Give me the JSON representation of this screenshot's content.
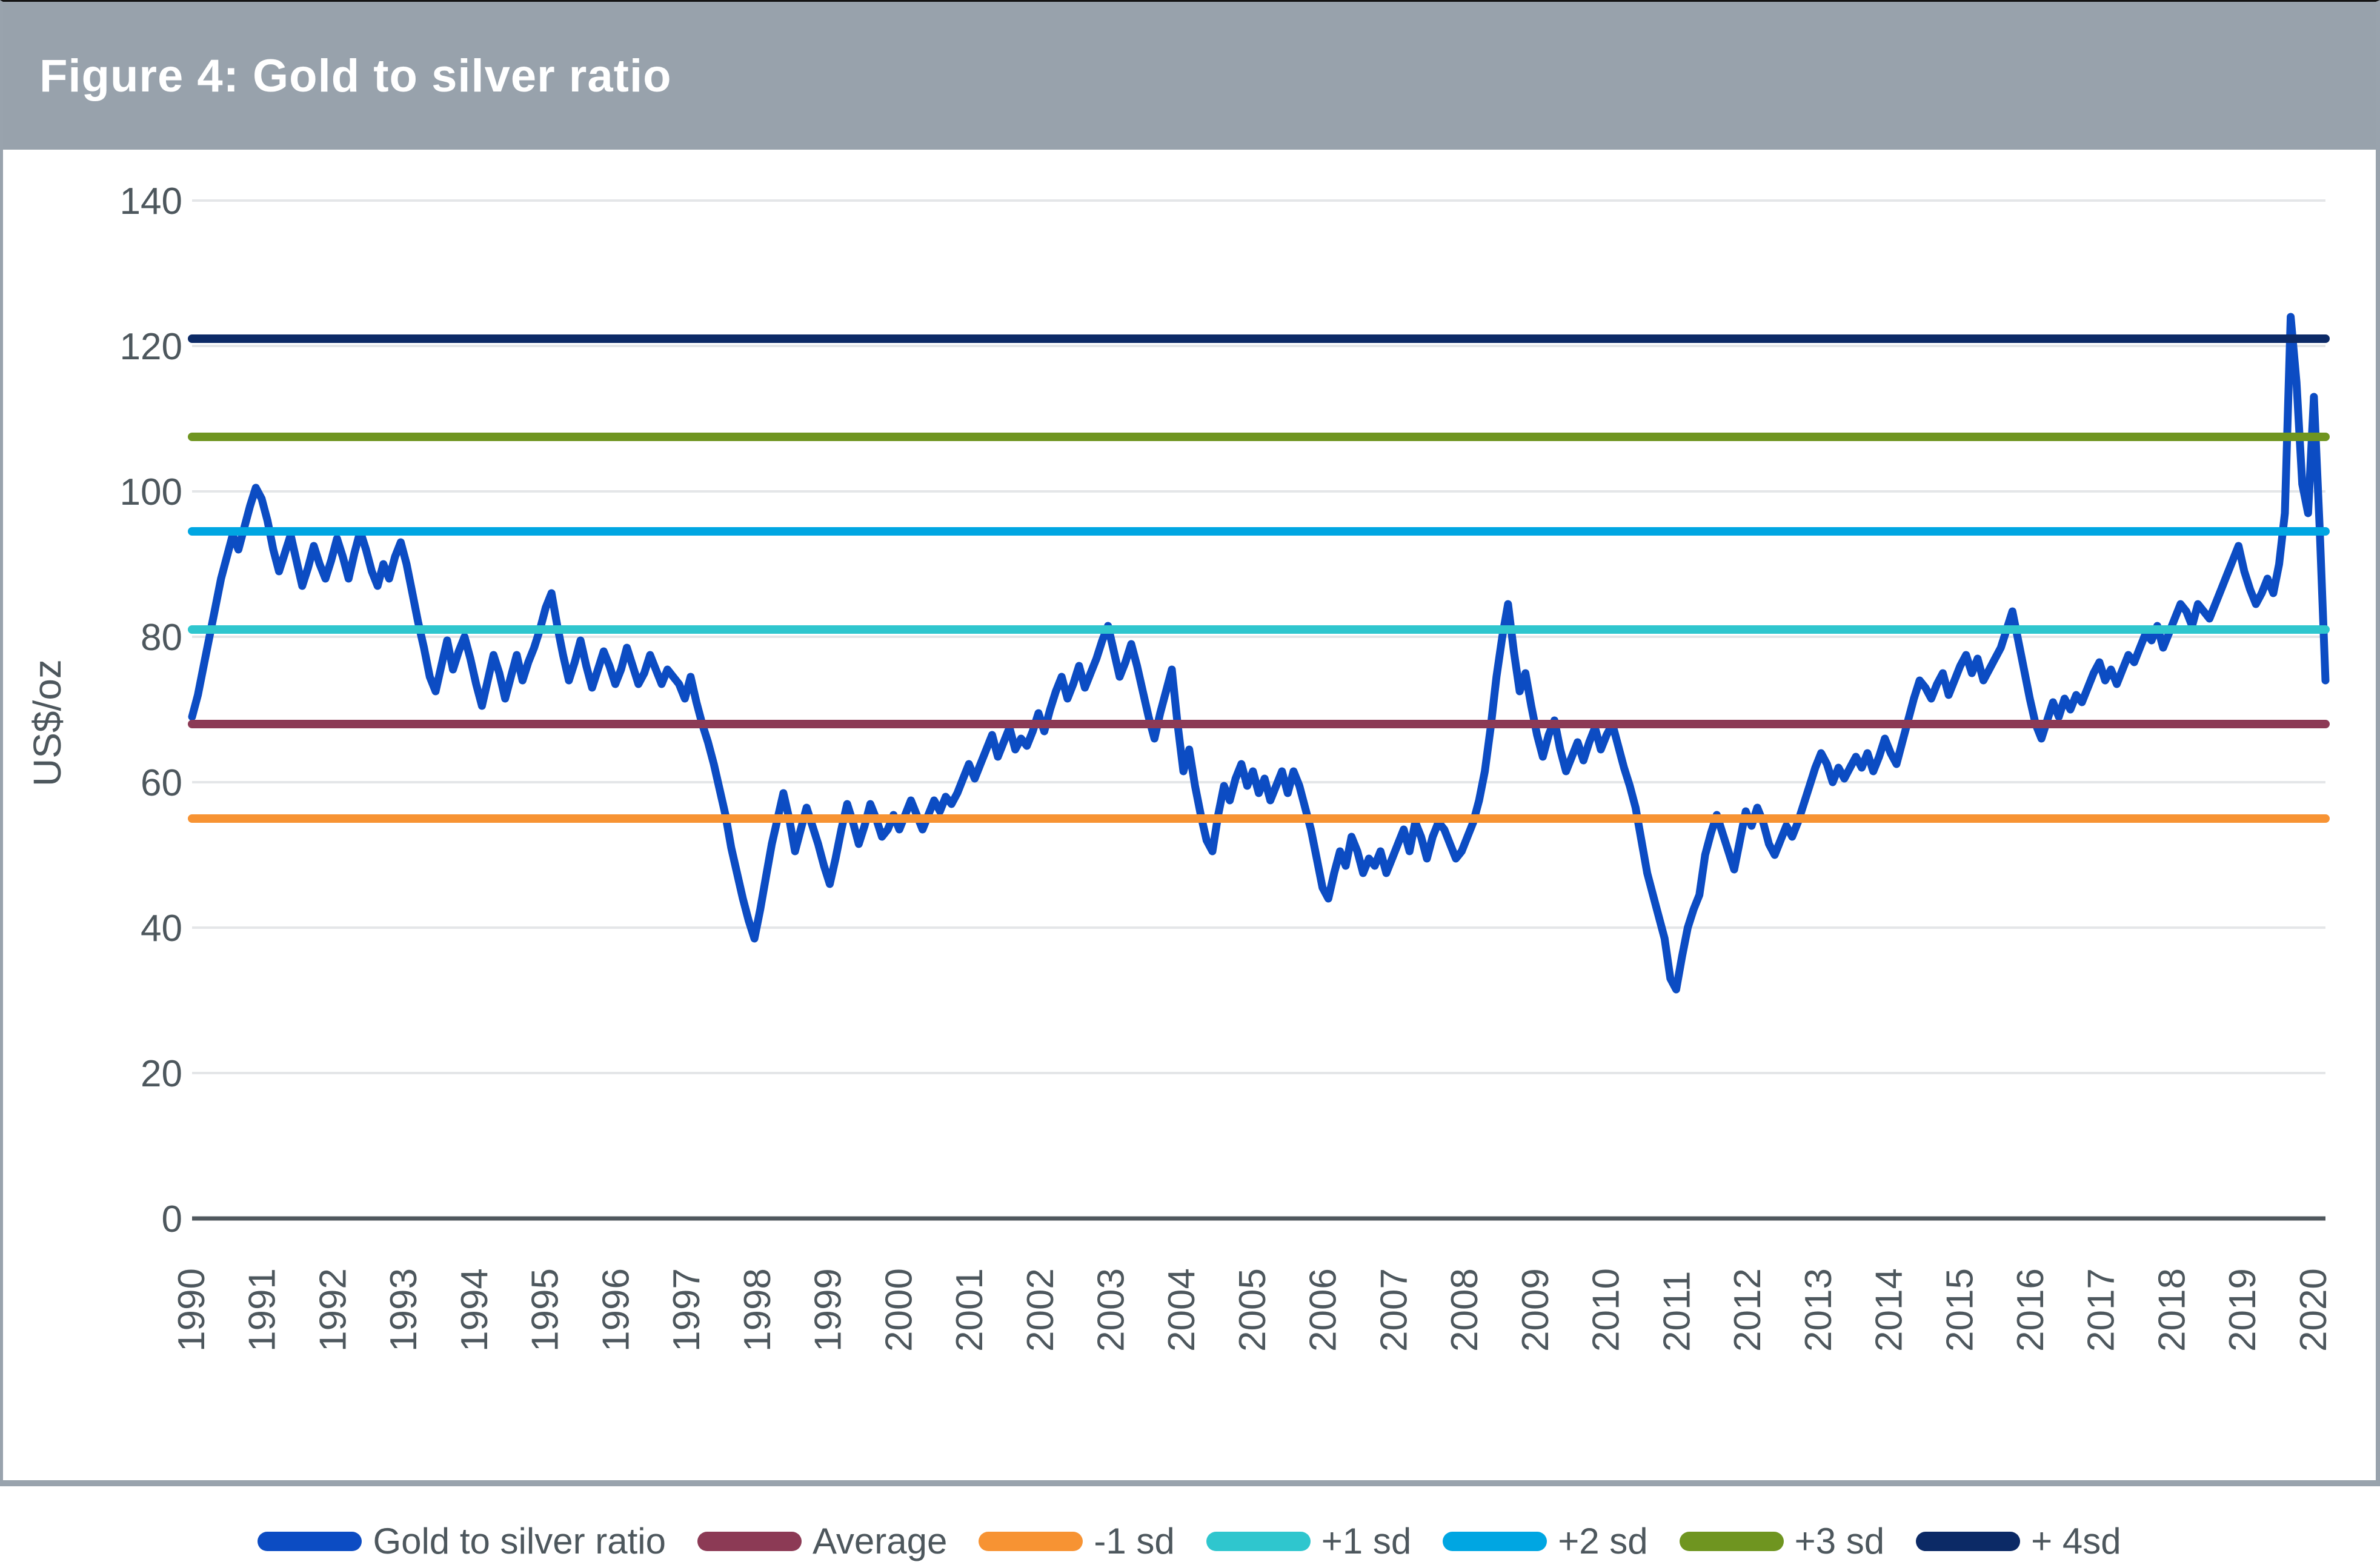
{
  "header": {
    "title": "Figure 4: Gold to silver ratio"
  },
  "colors": {
    "header_bg": "#98a2ac",
    "frame": "#99a3ad",
    "text": "#4d575d",
    "axis_line": "#50585e",
    "gridline": "#e4e6e8",
    "series_blue": "#0c4cc3"
  },
  "chart_data": {
    "type": "line",
    "title": "Figure 4: Gold to silver ratio",
    "xlabel": "",
    "ylabel": "US$/oz",
    "ylim": [
      0,
      140
    ],
    "yticks": [
      0,
      20,
      40,
      60,
      80,
      100,
      120,
      140
    ],
    "grid": "horizontal",
    "legend_position": "bottom",
    "x_start_year": 1990,
    "x_step_months": 1,
    "x_tick_years": [
      1990,
      1991,
      1992,
      1993,
      1994,
      1995,
      1996,
      1997,
      1998,
      1999,
      2000,
      2001,
      2002,
      2003,
      2004,
      2005,
      2006,
      2007,
      2008,
      2009,
      2010,
      2011,
      2012,
      2013,
      2014,
      2015,
      2016,
      2017,
      2018,
      2019,
      2020
    ],
    "series": [
      {
        "name": "Gold to silver ratio",
        "type": "line",
        "color": "#0c4cc3",
        "values": [
          69,
          72,
          76,
          80,
          84,
          88,
          91,
          94,
          92,
          95,
          98,
          100.5,
          99,
          96,
          92,
          89,
          91.5,
          94,
          90.5,
          87,
          89.5,
          92.5,
          90,
          88,
          90.5,
          93.5,
          91,
          88,
          91.5,
          94.5,
          92,
          89,
          87,
          90,
          88,
          91,
          93,
          90,
          86,
          82,
          78.5,
          74.5,
          72.5,
          76,
          79.5,
          75.5,
          78,
          80,
          77,
          73.5,
          70.5,
          74,
          77.5,
          75,
          71.5,
          74.5,
          77.5,
          74,
          76.5,
          78.5,
          81,
          84,
          86,
          81.5,
          77.5,
          74,
          76.5,
          79.5,
          76,
          73,
          75.5,
          78,
          76,
          73.5,
          75.5,
          78.5,
          76,
          73.5,
          75,
          77.5,
          75.5,
          73.5,
          75.5,
          74.5,
          73.5,
          71.5,
          74.5,
          71,
          68,
          65.5,
          62.5,
          59,
          55.5,
          51,
          47.5,
          44,
          41,
          38.5,
          42.5,
          47,
          51.5,
          55,
          58.5,
          55,
          50.5,
          53.5,
          56.5,
          54,
          51.5,
          48.5,
          46,
          49.5,
          53.5,
          57,
          54.5,
          51.5,
          54,
          57,
          55,
          52.5,
          53.5,
          55.5,
          53.5,
          55.5,
          57.5,
          55.5,
          53.5,
          55.5,
          57.5,
          56,
          58,
          57,
          58.5,
          60.5,
          62.5,
          60.5,
          62.5,
          64.5,
          66.5,
          63.5,
          65.5,
          67.5,
          64.5,
          66,
          65,
          67,
          69.5,
          67,
          70,
          72.5,
          74.5,
          71.5,
          73.5,
          76,
          73,
          75,
          77,
          79.5,
          81.5,
          78,
          74.5,
          76.5,
          79,
          76,
          72.5,
          69,
          66,
          69.5,
          72.5,
          75.5,
          68,
          61.5,
          64.5,
          59.5,
          55.5,
          52,
          50.5,
          55.5,
          59.5,
          57.5,
          60.5,
          62.5,
          59.5,
          61.5,
          58.5,
          60.5,
          57.5,
          59.5,
          61.5,
          58.5,
          61.5,
          59.5,
          56.5,
          53.5,
          49.5,
          45.5,
          44,
          47.5,
          50.5,
          48.5,
          52.5,
          50.5,
          47.5,
          49.5,
          48.5,
          50.5,
          47.5,
          49.5,
          51.5,
          53.5,
          50.5,
          54.5,
          52.5,
          49.5,
          52.5,
          54.5,
          53.5,
          51.5,
          49.5,
          50.5,
          52.5,
          54.5,
          57.5,
          61.5,
          67.5,
          74.5,
          80,
          84.5,
          78,
          72.5,
          75,
          70.5,
          66.5,
          63.5,
          66.5,
          68.5,
          64.5,
          61.5,
          63.5,
          65.5,
          63,
          65.5,
          67.5,
          64.5,
          66.5,
          68,
          65,
          62,
          59.5,
          56.5,
          52,
          47.5,
          44.5,
          41.5,
          38.5,
          33,
          31.5,
          36,
          40,
          42.5,
          44.5,
          50,
          53,
          55.5,
          53,
          50.5,
          48,
          52,
          56,
          54,
          56.5,
          54.5,
          51.5,
          50,
          52,
          54,
          52.5,
          54.5,
          57,
          59.5,
          62,
          64,
          62.5,
          60,
          62,
          60.5,
          62,
          63.5,
          62,
          64,
          61.5,
          63.5,
          66,
          64,
          62.5,
          65.5,
          68.5,
          71.5,
          74,
          73,
          71.5,
          73.5,
          75,
          72,
          74,
          76,
          77.5,
          75,
          77,
          74,
          75.5,
          77,
          78.5,
          81,
          83.5,
          79.5,
          75.5,
          71.5,
          68,
          66,
          68.5,
          71,
          69,
          71.5,
          70,
          72,
          71,
          73,
          75,
          76.5,
          74,
          75.5,
          73.5,
          75.5,
          77.5,
          76.5,
          78.5,
          80.5,
          79.5,
          81.5,
          78.5,
          80.5,
          82.5,
          84.5,
          83.5,
          81.5,
          84.5,
          83.5,
          82.5,
          84.5,
          86.5,
          88.5,
          90.5,
          92.5,
          89,
          86.5,
          84.5,
          86,
          88,
          86,
          90,
          97,
          124,
          115,
          101,
          97,
          113,
          95,
          74
        ]
      },
      {
        "name": "Average",
        "type": "hline",
        "color": "#8c3a55",
        "value": 68
      },
      {
        "name": "-1 sd",
        "type": "hline",
        "color": "#f79333",
        "value": 55
      },
      {
        "name": "+1 sd",
        "type": "hline",
        "color": "#2fc6ce",
        "value": 81
      },
      {
        "name": "+2 sd",
        "type": "hline",
        "color": "#00a6e2",
        "value": 94.5
      },
      {
        "name": "+3 sd",
        "type": "hline",
        "color": "#6f9520",
        "value": 107.5
      },
      {
        "name": "+ 4sd",
        "type": "hline",
        "color": "#0c2a66",
        "value": 121
      }
    ]
  }
}
